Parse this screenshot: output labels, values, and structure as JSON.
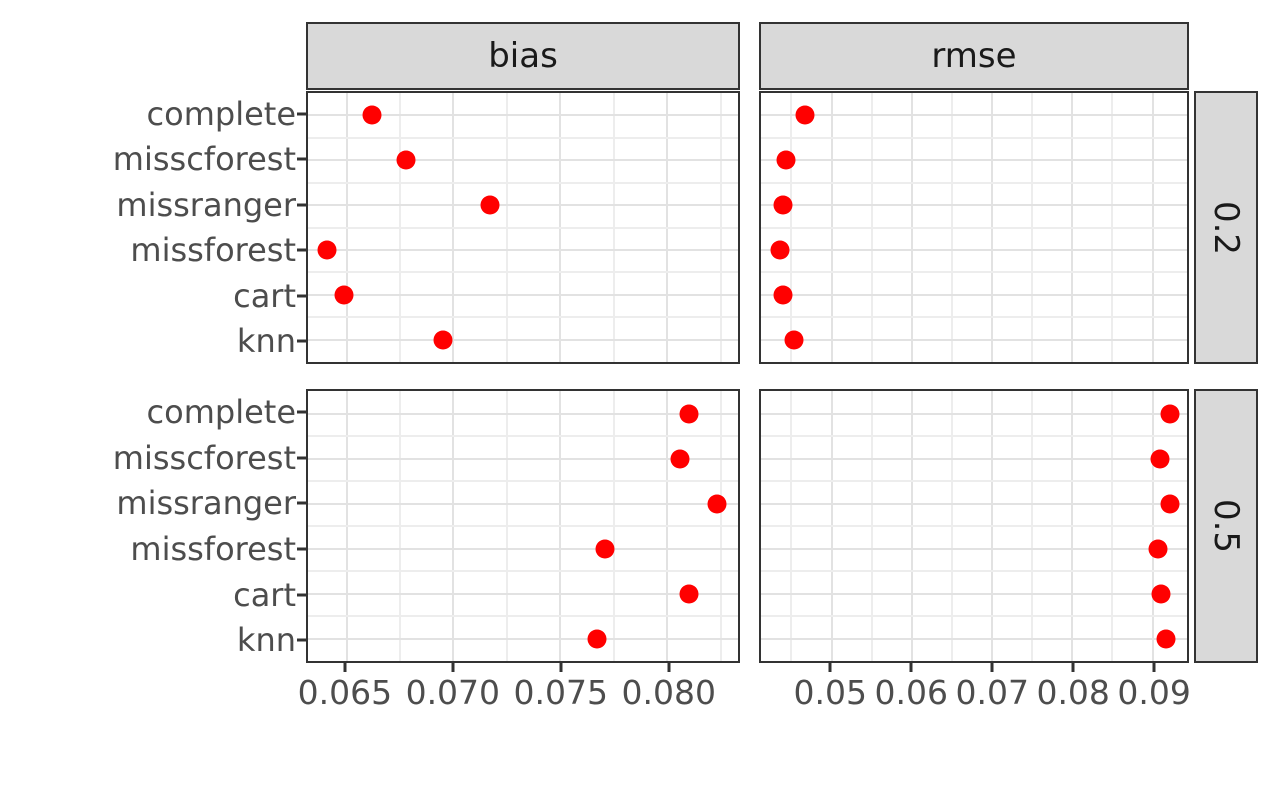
{
  "style": {
    "background": "#FFFFFF",
    "point_color": "#FF0000",
    "strip_fill": "#D9D9D9",
    "strip_border": "#333333",
    "strip_text_color": "#1A1A1A",
    "panel_border": "#333333",
    "grid_major_color": "#E2E2E2",
    "grid_minor_color": "#EDEDED",
    "axis_text_color": "#4D4D4D",
    "tick_mark_color": "#333333"
  },
  "chart_data": {
    "type": "scatter",
    "title": "",
    "xlabel": "",
    "ylabel": "",
    "legend": "none",
    "grid": true,
    "facet_cols": [
      "bias",
      "rmse"
    ],
    "facet_rows": [
      "0.2",
      "0.5"
    ],
    "categories": [
      "complete",
      "misscforest",
      "missranger",
      "missforest",
      "cart",
      "knn"
    ],
    "point_color": "#FF0000",
    "x_axes": {
      "bias": {
        "lim": [
          0.0632,
          0.0833
        ],
        "ticks": [
          0.065,
          0.07,
          0.075,
          0.08
        ],
        "tick_labels": [
          "0.065",
          "0.070",
          "0.075",
          "0.080"
        ],
        "minor": [
          0.0675,
          0.0725,
          0.0775,
          0.0825
        ]
      },
      "rmse": {
        "lim": [
          0.0412,
          0.0943
        ],
        "ticks": [
          0.05,
          0.06,
          0.07,
          0.08,
          0.09
        ],
        "tick_labels": [
          "0.05",
          "0.06",
          "0.07",
          "0.08",
          "0.09"
        ],
        "minor": [
          0.045,
          0.055,
          0.065,
          0.075,
          0.085
        ]
      }
    },
    "series": [
      {
        "facet_col": "bias",
        "facet_row": "0.2",
        "values": [
          0.0662,
          0.0678,
          0.0717,
          0.0641,
          0.0649,
          0.0695
        ]
      },
      {
        "facet_col": "bias",
        "facet_row": "0.5",
        "values": [
          0.081,
          0.0806,
          0.0823,
          0.0771,
          0.081,
          0.0767
        ]
      },
      {
        "facet_col": "rmse",
        "facet_row": "0.2",
        "values": [
          0.0467,
          0.0443,
          0.044,
          0.0436,
          0.044,
          0.0453
        ]
      },
      {
        "facet_col": "rmse",
        "facet_row": "0.5",
        "values": [
          0.0922,
          0.0909,
          0.0922,
          0.0907,
          0.0911,
          0.0917
        ]
      }
    ]
  }
}
